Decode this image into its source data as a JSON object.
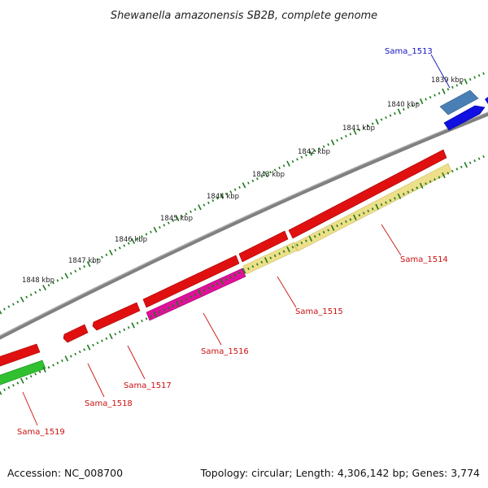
{
  "title": "Shewanella amazonensis SB2B, complete genome",
  "footer": {
    "accession": "Accession: NC_008700",
    "summary": "Topology: circular; Length: 4,306,142 bp; Genes: 3,774"
  },
  "scale_labels": [
    "1839 kbp",
    "1840 kbp",
    "1841 kbp",
    "1842 kbp",
    "1843 kbp",
    "1844 kbp",
    "1845 kbp",
    "1846 kbp",
    "1847 kbp",
    "1848 kbp"
  ],
  "genes": [
    {
      "name": "Sama_1513",
      "strand": "+",
      "color": "#1010e0",
      "label_color": "#1010c0"
    },
    {
      "name": "Sama_1514",
      "strand": "+",
      "color": "#e01010",
      "label_color": "#cc1010"
    },
    {
      "name": "Sama_1515",
      "strand": "+",
      "color": "#e01010",
      "label_color": "#cc1010"
    },
    {
      "name": "Sama_1516",
      "strand": "+",
      "color": "#e01010",
      "label_color": "#cc1010"
    },
    {
      "name": "Sama_1517",
      "strand": "-",
      "color": "#e01010",
      "label_color": "#cc1010"
    },
    {
      "name": "Sama_1518",
      "strand": "-",
      "color": "#e01010",
      "label_color": "#cc1010"
    },
    {
      "name": "Sama_1519",
      "strand": "+",
      "color": "#e01010",
      "label_color": "#cc1010"
    }
  ],
  "feature_colors": {
    "backbone": "#808080",
    "scale_ticks": "#1a7a1a",
    "steelblue_feature": "#4a7fb5",
    "yellow_feature": "#eedf8a",
    "magenta_feature": "#e0109a",
    "green_feature": "#30c030"
  }
}
